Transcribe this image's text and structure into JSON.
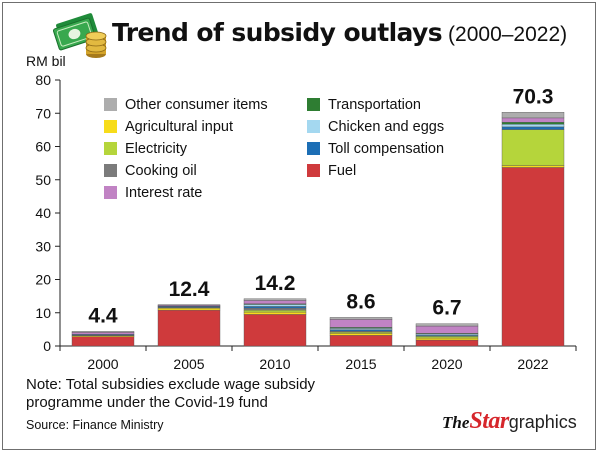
{
  "header": {
    "title": "Trend of subsidy outlays",
    "subtitle": "(2000–2022)"
  },
  "footer": {
    "note": "Note: Total subsidies exclude wage subsidy programme under the Covid-19 fund",
    "source": "Source: Finance Ministry",
    "brand_the": "The",
    "brand_star": "Star",
    "brand_graphics": "graphics"
  },
  "logo_icon": "money-bills-and-coins-icon",
  "chart_data": {
    "type": "bar",
    "stacked": true,
    "ylabel": "RM bil",
    "xlabel": "",
    "ylim": [
      0,
      80
    ],
    "yticks": [
      0,
      10,
      20,
      30,
      40,
      50,
      60,
      70,
      80
    ],
    "grid": false,
    "legend_position": "top-left",
    "categories": [
      "2000",
      "2005",
      "2010",
      "2015",
      "2020",
      "2022"
    ],
    "totals": [
      "4.4",
      "12.4",
      "14.2",
      "8.6",
      "6.7",
      "70.3"
    ],
    "series": [
      {
        "name": "Fuel",
        "color": "#cf3a3c",
        "values": [
          2.8,
          10.8,
          9.5,
          3.2,
          1.8,
          53.7
        ]
      },
      {
        "name": "Agricultural input",
        "color": "#f7dc1a",
        "values": [
          0.3,
          0.6,
          0.7,
          0.6,
          0.6,
          0.6
        ]
      },
      {
        "name": "Electricity",
        "color": "#b5d53b",
        "values": [
          0.0,
          0.0,
          0.6,
          0.4,
          0.5,
          10.8
        ]
      },
      {
        "name": "Cooking oil",
        "color": "#7b7b7b",
        "values": [
          0.2,
          0.2,
          0.6,
          0.3,
          0.0,
          0.0
        ]
      },
      {
        "name": "Toll compensation",
        "color": "#1c6eb5",
        "values": [
          0.2,
          0.3,
          0.5,
          0.4,
          0.3,
          0.8
        ]
      },
      {
        "name": "Chicken and eggs",
        "color": "#a4d8f0",
        "values": [
          0.0,
          0.0,
          0.6,
          0.4,
          0.4,
          0.8
        ]
      },
      {
        "name": "Transportation",
        "color": "#2e7d32",
        "values": [
          0.0,
          0.1,
          0.2,
          0.3,
          0.2,
          0.6
        ]
      },
      {
        "name": "Interest rate",
        "color": "#c183c4",
        "values": [
          0.6,
          0.3,
          1.0,
          2.4,
          2.2,
          1.3
        ]
      },
      {
        "name": "Other consumer items",
        "color": "#adadad",
        "values": [
          0.3,
          0.1,
          0.5,
          0.6,
          0.7,
          1.7
        ]
      }
    ],
    "legend_order": [
      "Other consumer items",
      "Transportation",
      "Agricultural input",
      "Chicken and eggs",
      "Electricity",
      "Toll compensation",
      "Cooking oil",
      "Fuel",
      "Interest rate"
    ]
  }
}
